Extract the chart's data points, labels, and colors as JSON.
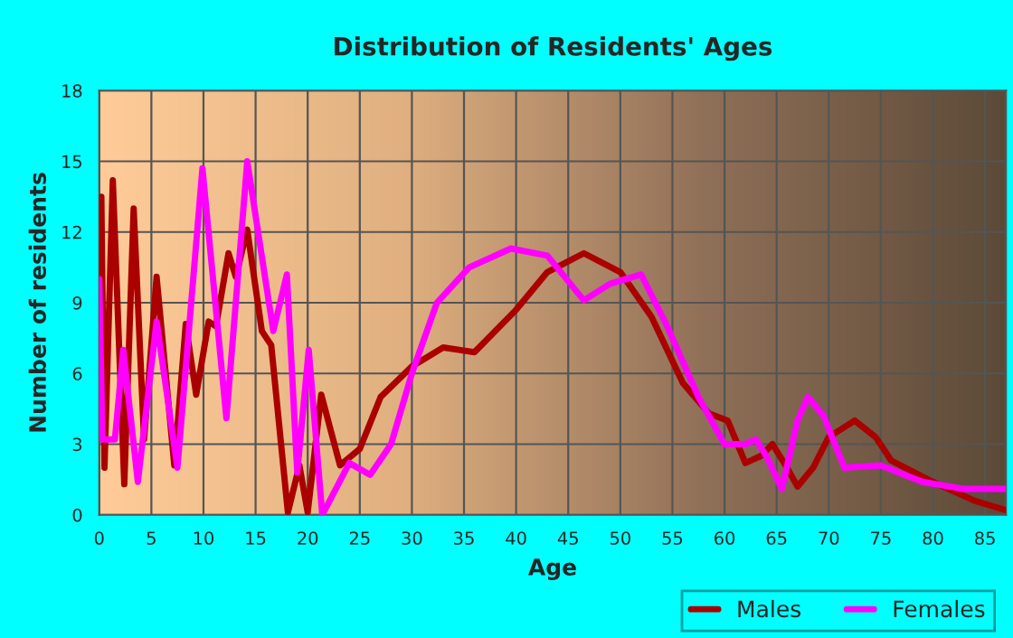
{
  "chart_data": {
    "type": "line",
    "title": "Distribution of Residents' Ages",
    "xlabel": "Age",
    "ylabel": "Number of residents",
    "xlim": [
      0,
      87
    ],
    "xticks": [
      0,
      5,
      10,
      15,
      20,
      25,
      30,
      35,
      40,
      45,
      50,
      55,
      60,
      65,
      70,
      75,
      80,
      85
    ],
    "ylim": [
      0,
      18
    ],
    "yticks": [
      0,
      3,
      6,
      9,
      12,
      15,
      18
    ],
    "grid": true,
    "legend": "bottom right",
    "marker": "none",
    "line_style": "solid",
    "series": [
      {
        "name": "Males",
        "color": "#aa0000",
        "x": [
          0,
          0.2,
          0.5,
          1.3,
          2.4,
          3.3,
          4.3,
          5.5,
          7.2,
          8.3,
          9.3,
          10.5,
          11.2,
          12.4,
          13.1,
          14.2,
          15.6,
          16.5,
          18.1,
          19.2,
          20,
          21.3,
          23.1,
          25,
          27,
          30,
          33,
          36,
          40,
          43,
          46.5,
          50,
          53,
          56,
          58.5,
          60.3,
          62,
          63.5,
          64.6,
          66,
          67,
          68.5,
          70,
          72.5,
          74.5,
          76,
          80,
          84,
          87
        ],
        "values": [
          10,
          13.5,
          2,
          14.2,
          1.3,
          13,
          3.2,
          10.1,
          2.1,
          8.1,
          5.1,
          8.2,
          8,
          11.1,
          10.1,
          12.1,
          7.8,
          7.2,
          0.1,
          2.1,
          0.1,
          5.1,
          2.1,
          2.8,
          5,
          6.3,
          7.1,
          6.9,
          8.7,
          10.3,
          11.1,
          10.3,
          8.4,
          5.6,
          4.3,
          4,
          2.2,
          2.5,
          3,
          2,
          1.2,
          2,
          3.3,
          4,
          3.3,
          2.3,
          1.4,
          0.6,
          0.2
        ]
      },
      {
        "name": "Females",
        "color": "#ff00ff",
        "x": [
          0,
          0.3,
          1.5,
          2.3,
          3.7,
          5.5,
          7.5,
          9.9,
          12.2,
          14.2,
          16.7,
          18,
          19,
          20.1,
          21.4,
          24,
          26,
          28,
          30,
          32.4,
          35.5,
          39.5,
          43,
          46.5,
          49,
          52,
          54.5,
          57.5,
          60,
          62,
          63,
          64,
          65.5,
          67,
          68,
          69.5,
          71.5,
          75,
          79,
          83,
          87
        ],
        "values": [
          10,
          3.2,
          3.2,
          7,
          1.4,
          8.2,
          2,
          14.7,
          4.1,
          15,
          7.8,
          10.2,
          1.8,
          7,
          0,
          2.2,
          1.7,
          3,
          6,
          9,
          10.5,
          11.3,
          11,
          9.1,
          9.8,
          10.2,
          8,
          5,
          3,
          3,
          3.2,
          2.5,
          1.1,
          4,
          5,
          4.2,
          2,
          2.1,
          1.4,
          1.1,
          1.1
        ]
      }
    ]
  }
}
